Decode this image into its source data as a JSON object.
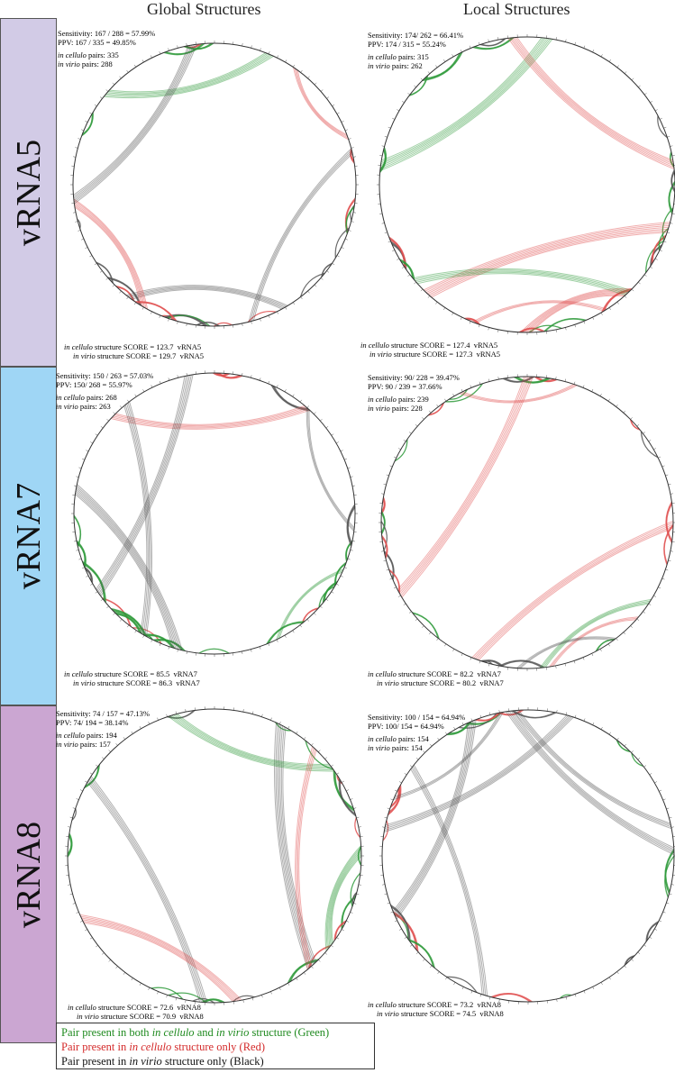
{
  "columns": {
    "global": "Global Structures",
    "local": "Local Structures"
  },
  "rows": [
    {
      "label": "vRNA5",
      "color": "#d2cbe6"
    },
    {
      "label": "vRNA7",
      "color": "#9fd6f5"
    },
    {
      "label": "vRNA8",
      "color": "#cba6d2"
    }
  ],
  "panels": {
    "r0_global": {
      "sensitivity": "Sensitivity: 167 / 288 = 57.99%",
      "ppv": "PPV: 167 / 335 = 49.85%",
      "cellulo_pairs": "335",
      "virio_pairs": "288",
      "cellulo_score": "123.7",
      "virio_score": "129.7",
      "rna": "vRNA5"
    },
    "r0_local": {
      "sensitivity": "Sensitivity: 174/ 262 = 66.41%",
      "ppv": "PPV: 174 / 315 = 55.24%",
      "cellulo_pairs": "315",
      "virio_pairs": "262",
      "cellulo_score": "127.4",
      "virio_score": "127.3",
      "rna": "vRNA5"
    },
    "r1_global": {
      "sensitivity": "Sensitivity: 150 / 263 = 57.03%",
      "ppv": "PPV: 150/ 268 = 55.97%",
      "cellulo_pairs": "268",
      "virio_pairs": "263",
      "cellulo_score": "85.5",
      "virio_score": "86.3",
      "rna": "vRNA7"
    },
    "r1_local": {
      "sensitivity": "Sensitivity: 90/ 228 = 39.47%",
      "ppv": "PPV: 90 / 239 = 37.66%",
      "cellulo_pairs": "239",
      "virio_pairs": "228",
      "cellulo_score": "82.2",
      "virio_score": "80.2",
      "rna": "vRNA7"
    },
    "r2_global": {
      "sensitivity": "Sensitivity: 74 / 157 = 47.13%",
      "ppv": "PPV: 74/ 194 = 38.14%",
      "cellulo_pairs": "194",
      "virio_pairs": "157",
      "cellulo_score": "72.6",
      "virio_score": "70.9",
      "rna": "vRNA8"
    },
    "r2_local": {
      "sensitivity": "Sensitivity: 100 / 154 = 64.94%",
      "ppv": "PPV: 100/ 154 = 64.94%",
      "cellulo_pairs": "154",
      "virio_pairs": "154",
      "cellulo_score": "73.2",
      "virio_score": "74.5",
      "rna": "vRNA8"
    }
  },
  "labels": {
    "in_cellulo": "in cellulo",
    "in_virio": "in virio",
    "pairs": " pairs: ",
    "structure_score": " structure SCORE = ",
    "structure_score_spaced": " structure  SCORE = "
  },
  "legend": {
    "green_prefix": "Pair present in both ",
    "green_and": " and ",
    "green_suffix": " structure (Green)",
    "red_prefix": "Pair present in ",
    "red_suffix": " structure only (Red)",
    "black_prefix": "Pair present in ",
    "black_suffix": " structure only (Black)"
  },
  "colors": {
    "both": "#2e9a3a",
    "cellulo_only": "#e05050",
    "virio_only": "#555555",
    "circle": "#333333"
  }
}
